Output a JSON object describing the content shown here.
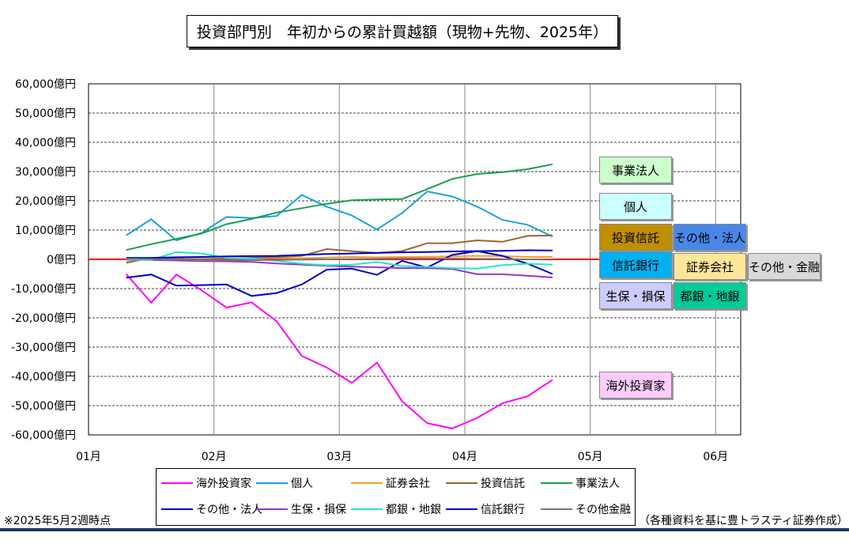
{
  "title": "投資部門別　年初からの累計買越額（現物+先物、2025年）",
  "note_left": "※2025年5月2週時点",
  "note_right": "（各種資料を基に豊トラスティ証券作成）",
  "chart_data": {
    "type": "line",
    "title": "投資部門別　年初からの累計買越額（現物+先物、2025年）",
    "ylim": [
      -60000,
      60000
    ],
    "y_ticks": [
      60000,
      50000,
      40000,
      30000,
      20000,
      10000,
      0,
      -10000,
      -20000,
      -30000,
      -40000,
      -50000,
      -60000
    ],
    "y_tick_labels": [
      "60,000億円",
      "50,000億円",
      "40,000億円",
      "30,000億円",
      "20,000億円",
      "10,000億円",
      "0億円",
      "-10,000億円",
      "-20,000億円",
      "-30,000億円",
      "-40,000億円",
      "-50,000億円",
      "-60,000億円"
    ],
    "x_month_labels": [
      "01月",
      "02月",
      "03月",
      "04月",
      "05月",
      "06月"
    ],
    "xlim": [
      0,
      26
    ],
    "grid": true,
    "x": [
      1.5,
      2.5,
      3.5,
      4.5,
      5.5,
      6.5,
      7.5,
      8.5,
      9.5,
      10.5,
      11.5,
      12.5,
      13.5,
      14.5,
      15.5,
      16.5,
      17.5,
      18.5,
      19.5
    ],
    "series": [
      {
        "name": "海外投資家",
        "color": "#ff00ff",
        "label": "海外投資家",
        "label_bg": "#ffccff",
        "values": [
          -5000,
          -14800,
          -5200,
          -10500,
          -16500,
          -14700,
          -21200,
          -33000,
          -37000,
          -42200,
          -35300,
          -48500,
          -56000,
          -57800,
          -54200,
          -49200,
          -46800,
          -41200,
          null
        ]
      },
      {
        "name": "個人",
        "color": "#1aa3d9",
        "label": "個人",
        "label_bg": "#ccffff",
        "values": [
          8200,
          13700,
          6500,
          9000,
          14500,
          14100,
          14800,
          22000,
          18000,
          15000,
          10200,
          15800,
          23200,
          21500,
          18000,
          13500,
          11800,
          7800,
          null
        ]
      },
      {
        "name": "証券会社",
        "color": "#f2a12e",
        "label": "証券会社",
        "label_bg": "#ffe699",
        "values": [
          -400,
          0,
          100,
          200,
          300,
          400,
          500,
          400,
          600,
          800,
          700,
          800,
          900,
          1000,
          1200,
          1100,
          800,
          800,
          null
        ]
      },
      {
        "name": "投資信託",
        "color": "#996633",
        "label": "投資信託",
        "label_bg": "#bf8f00",
        "values": [
          -1200,
          500,
          200,
          0,
          300,
          500,
          800,
          1200,
          3500,
          2800,
          2200,
          2800,
          5500,
          5500,
          6500,
          6000,
          8000,
          8200,
          null
        ]
      },
      {
        "name": "事業法人",
        "color": "#1a9e4f",
        "label": "事業法人",
        "label_bg": "#ccffcc",
        "values": [
          3200,
          5200,
          7000,
          8800,
          12000,
          13800,
          16000,
          17500,
          19000,
          20200,
          20500,
          20600,
          24000,
          27500,
          29200,
          29800,
          30800,
          32500,
          null
        ]
      },
      {
        "name": "その他・法人",
        "color": "#0000cc",
        "label": "その他・法人",
        "label_bg": "#4a86e8",
        "values": [
          -6300,
          -5200,
          -9000,
          -8800,
          -8600,
          -12500,
          -11500,
          -8600,
          -3500,
          -3200,
          -5300,
          -500,
          -2800,
          1500,
          2800,
          1200,
          -1500,
          -5000,
          null
        ]
      },
      {
        "name": "生保・損保",
        "color": "#9933cc",
        "label": "生保・損保",
        "label_bg": "#ccccff",
        "values": [
          0,
          -200,
          -400,
          -600,
          -700,
          -900,
          -1400,
          -1800,
          -2200,
          -2500,
          -2700,
          -3000,
          -3000,
          -3300,
          -5100,
          -5100,
          -5600,
          -6200,
          null
        ]
      },
      {
        "name": "都銀・地銀",
        "color": "#22e6cc",
        "label": "都銀・地銀",
        "label_bg": "#00cc99",
        "values": [
          -200,
          -200,
          2500,
          2000,
          500,
          200,
          -500,
          -1500,
          -2000,
          -1800,
          -900,
          -2300,
          -2600,
          -3000,
          -3200,
          -2000,
          -1500,
          -1800,
          null
        ]
      },
      {
        "name": "信託銀行",
        "color": "#0000cc",
        "label": "信託銀行",
        "label_bg": "#00b0f0",
        "values": [
          500,
          500,
          700,
          800,
          1000,
          1100,
          1200,
          1500,
          1800,
          2000,
          2200,
          2400,
          2500,
          2700,
          2800,
          2900,
          3100,
          3000,
          null
        ]
      },
      {
        "name": "その他金融",
        "color": "#777777",
        "label": "その他・金融",
        "label_bg": "#d9d9d9",
        "values": [
          200,
          100,
          -100,
          -300,
          -400,
          -300,
          -200,
          -100,
          0,
          100,
          200,
          300,
          300,
          300,
          200,
          100,
          0,
          -100,
          null
        ]
      }
    ],
    "legend_placement": "bottom"
  },
  "legend_entries": [
    "海外投資家",
    "個人",
    "証券会社",
    "投資信託",
    "事業法人",
    "その他・法人",
    "生保・損保",
    "都銀・地銀",
    "信託銀行",
    "その他金融"
  ],
  "side_labels": {
    "jigyou": "事業法人",
    "kojin": "個人",
    "toushin": "投資信託",
    "sonota_houjin": "その他・法人",
    "shintaku": "信託銀行",
    "shouken": "証券会社",
    "sonota_kinyu": "その他・金融",
    "seiho": "生保・損保",
    "toginchigin": "都銀・地銀",
    "kaigai": "海外投資家"
  }
}
